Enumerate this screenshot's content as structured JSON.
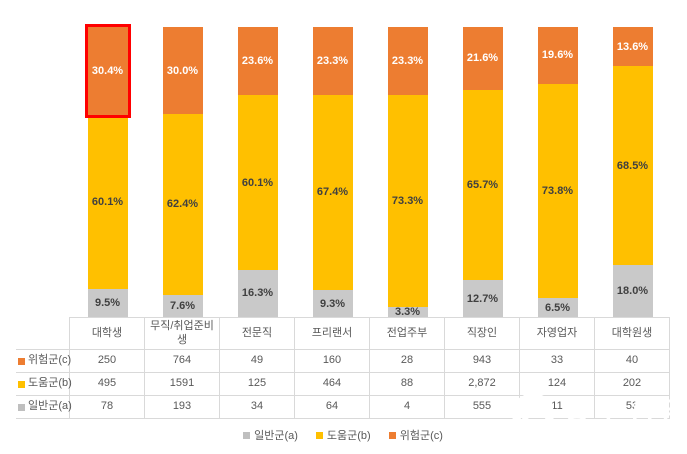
{
  "chart_data": {
    "type": "bar",
    "subtype": "stacked-100-percent-column",
    "title": "",
    "xlabel": "",
    "ylabel": "",
    "ylim": [
      0,
      100
    ],
    "grid": false,
    "legend_position": "bottom",
    "categories": [
      "대학생",
      "무직/취업준비생",
      "전문직",
      "프리랜서",
      "전업주부",
      "직장인",
      "자영업자",
      "대학원생"
    ],
    "series": [
      {
        "key": "risk",
        "name": "위험군(c)",
        "color": "#ED7D31",
        "percent": [
          30.4,
          30.0,
          23.6,
          23.3,
          23.3,
          21.6,
          19.6,
          13.6
        ],
        "counts": [
          250,
          764,
          49,
          160,
          28,
          943,
          33,
          40
        ]
      },
      {
        "key": "help",
        "name": "도움군(b)",
        "color": "#FFC000",
        "percent": [
          60.1,
          62.4,
          60.1,
          67.4,
          73.3,
          65.7,
          73.8,
          68.5
        ],
        "counts": [
          495,
          1591,
          125,
          464,
          88,
          2872,
          124,
          202
        ]
      },
      {
        "key": "normal",
        "name": "일반군(a)",
        "color": "#C9C9C9",
        "percent": [
          9.5,
          7.6,
          16.3,
          9.3,
          3.3,
          12.7,
          6.5,
          18.0
        ],
        "counts": [
          78,
          193,
          34,
          64,
          4,
          555,
          11,
          53
        ]
      }
    ],
    "highlight": {
      "category": "대학생",
      "series": "위험군(c)",
      "border_color": "#FF0000"
    }
  },
  "table": {
    "corner": "",
    "columns": [
      "대학생",
      "무직/취업준비생",
      "전문직",
      "프리랜서",
      "전업주부",
      "직장인",
      "자영업자",
      "대학원생"
    ],
    "rows": [
      {
        "label": "위험군(c)",
        "swatch_color": "#ED7D31",
        "values": [
          "250",
          "764",
          "49",
          "160",
          "28",
          "943",
          "33",
          "40"
        ]
      },
      {
        "label": "도움군(b)",
        "swatch_color": "#FFC000",
        "values": [
          "495",
          "1591",
          "125",
          "464",
          "88",
          "2,872",
          "124",
          "202"
        ]
      },
      {
        "label": "일반군(a)",
        "swatch_color": "#BFBFBF",
        "values": [
          "78",
          "193",
          "34",
          "64",
          "4",
          "555",
          "11",
          "53"
        ]
      }
    ]
  },
  "legend": {
    "items": [
      {
        "label": "일반군(a)",
        "color": "#BFBFBF"
      },
      {
        "label": "도움군(b)",
        "color": "#FFC000"
      },
      {
        "label": "위험군(c)",
        "color": "#ED7D31"
      }
    ]
  },
  "watermark": {
    "text": "정오신문"
  }
}
